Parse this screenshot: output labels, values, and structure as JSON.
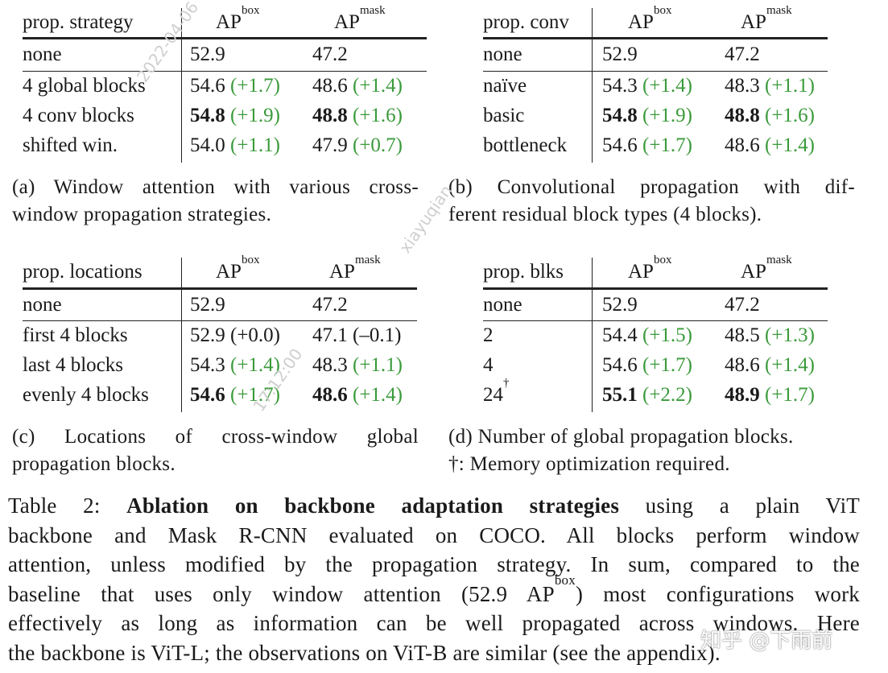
{
  "tables": [
    {
      "id": "a",
      "header": [
        "prop. strategy",
        "AP",
        "box",
        "AP",
        "mask"
      ],
      "rows": [
        {
          "label": "none",
          "box": "52.9",
          "box_gain": "",
          "mask": "47.2",
          "mask_gain": "",
          "bold": false
        },
        {
          "label": "4 global blocks",
          "box": "54.6",
          "box_gain": "(+1.7)",
          "mask": "48.6",
          "mask_gain": "(+1.4)",
          "bold": false
        },
        {
          "label": "4 conv blocks",
          "box": "54.8",
          "box_gain": "(+1.9)",
          "mask": "48.8",
          "mask_gain": "(+1.6)",
          "bold": true
        },
        {
          "label": "shifted win.",
          "box": "54.0",
          "box_gain": "(+1.1)",
          "mask": "47.9",
          "mask_gain": "(+0.7)",
          "bold": false
        }
      ],
      "caption": [
        "(a) Window attention with various cross-",
        "window propagation strategies."
      ]
    },
    {
      "id": "b",
      "header": [
        "prop. conv",
        "AP",
        "box",
        "AP",
        "mask"
      ],
      "rows": [
        {
          "label": "none",
          "box": "52.9",
          "box_gain": "",
          "mask": "47.2",
          "mask_gain": "",
          "bold": false
        },
        {
          "label": "naïve",
          "box": "54.3",
          "box_gain": "(+1.4)",
          "mask": "48.3",
          "mask_gain": "(+1.1)",
          "bold": false
        },
        {
          "label": "basic",
          "box": "54.8",
          "box_gain": "(+1.9)",
          "mask": "48.8",
          "mask_gain": "(+1.6)",
          "bold": true
        },
        {
          "label": "bottleneck",
          "box": "54.6",
          "box_gain": "(+1.7)",
          "mask": "48.6",
          "mask_gain": "(+1.4)",
          "bold": false
        }
      ],
      "caption": [
        "(b) Convolutional propagation with dif-",
        "ferent residual block types (4 blocks)."
      ]
    },
    {
      "id": "c",
      "header": [
        "prop. locations",
        "AP",
        "box",
        "AP",
        "mask"
      ],
      "rows": [
        {
          "label": "none",
          "box": "52.9",
          "box_gain": "",
          "mask": "47.2",
          "mask_gain": "",
          "bold": false
        },
        {
          "label": "first 4 blocks",
          "box": "52.9",
          "box_gain": "(+0.0)",
          "mask": "47.1",
          "mask_gain": "(–0.1)",
          "bold": false
        },
        {
          "label": "last 4 blocks",
          "box": "54.3",
          "box_gain": "(+1.4)",
          "mask": "48.3",
          "mask_gain": "(+1.1)",
          "bold": false
        },
        {
          "label": "evenly 4 blocks",
          "box": "54.6",
          "box_gain": "(+1.7)",
          "mask": "48.6",
          "mask_gain": "(+1.4)",
          "bold": true
        }
      ],
      "caption": [
        "(c) Locations of cross-window global",
        "propagation blocks."
      ]
    },
    {
      "id": "d",
      "header": [
        "prop. blks",
        "AP",
        "box",
        "AP",
        "mask"
      ],
      "rows": [
        {
          "label": "none",
          "label_sup": "",
          "box": "52.9",
          "box_gain": "",
          "mask": "47.2",
          "mask_gain": "",
          "bold": false
        },
        {
          "label": "2",
          "label_sup": "",
          "box": "54.4",
          "box_gain": "(+1.5)",
          "mask": "48.5",
          "mask_gain": "(+1.3)",
          "bold": false
        },
        {
          "label": "4",
          "label_sup": "",
          "box": "54.6",
          "box_gain": "(+1.7)",
          "mask": "48.6",
          "mask_gain": "(+1.4)",
          "bold": false
        },
        {
          "label": "24",
          "label_sup": "†",
          "box": "55.1",
          "box_gain": "(+2.2)",
          "mask": "48.9",
          "mask_gain": "(+1.7)",
          "bold": true
        }
      ],
      "caption": [
        "(d) Number of global propagation blocks.",
        "†: Memory optimization required."
      ]
    }
  ],
  "main_caption": {
    "label": "Table 2:",
    "bold_title": "Ablation on backbone adaptation strategies",
    "l1_rest": "using a plain ViT",
    "l2": "backbone and Mask R-CNN evaluated on COCO. All blocks perform window",
    "l3": "attention, unless modified by the propagation strategy. In sum, compared to the",
    "l4_a": "baseline that uses only window attention (52.9 AP",
    "l4_sup": "box",
    "l4_b": ") most configurations work",
    "l5": "effectively as long as information can be well propagated across windows. Here",
    "l6": "the backbone is ViT-L; the observations on ViT-B are similar (see the appendix)."
  },
  "watermarks": [
    "2022-04-06",
    "xiayuqian",
    "17:12:00",
    "知乎 @下雨前"
  ]
}
